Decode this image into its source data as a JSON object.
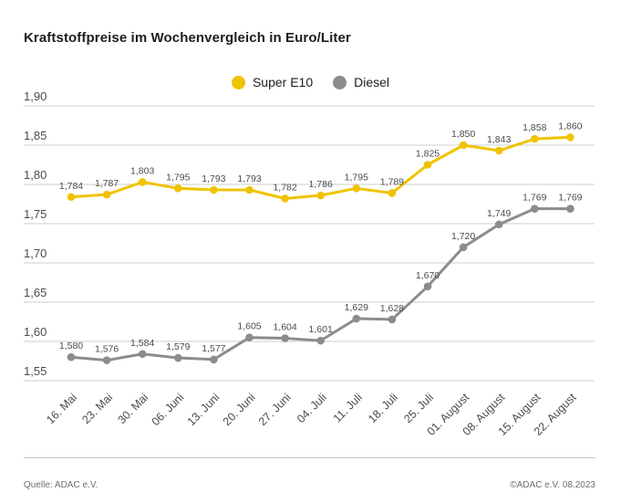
{
  "title": "Kraftstoffpreise im Wochenvergleich in Euro/Liter",
  "legend": {
    "items": [
      {
        "label": "Super E10",
        "color": "#F0C300"
      },
      {
        "label": "Diesel",
        "color": "#8C8C8C"
      }
    ]
  },
  "footer": {
    "source": "Quelle: ADAC e.V.",
    "copyright": "©ADAC e.V. 08.2023"
  },
  "chart_data": {
    "type": "line",
    "title": "Kraftstoffpreise im Wochenvergleich in Euro/Liter",
    "xlabel": "",
    "ylabel": "Euro/Liter",
    "ylim": [
      1.55,
      1.9
    ],
    "yticks": [
      1.9,
      1.85,
      1.8,
      1.75,
      1.7,
      1.65,
      1.6,
      1.55
    ],
    "grid": true,
    "legend_position": "top",
    "decimal_separator": ",",
    "categories": [
      "16. Mai",
      "23. Mai",
      "30. Mai",
      "06. Juni",
      "13. Juni",
      "20. Juni",
      "27. Juni",
      "04. Juli",
      "11. Juli",
      "18. Juli",
      "25. Juli",
      "01. August",
      "08. August",
      "15. August",
      "22. August"
    ],
    "series": [
      {
        "name": "Super E10",
        "color": "#F0C300",
        "values": [
          1.784,
          1.787,
          1.803,
          1.795,
          1.793,
          1.793,
          1.782,
          1.786,
          1.795,
          1.789,
          1.825,
          1.85,
          1.843,
          1.858,
          1.86
        ]
      },
      {
        "name": "Diesel",
        "color": "#8C8C8C",
        "values": [
          1.58,
          1.576,
          1.584,
          1.579,
          1.577,
          1.605,
          1.604,
          1.601,
          1.629,
          1.628,
          1.67,
          1.72,
          1.749,
          1.769,
          1.769
        ]
      }
    ]
  },
  "style": {
    "gridline_color": "#cdcdcd",
    "tick_label_color": "#4b4b4b",
    "data_label_color": "#4b4b4b"
  }
}
